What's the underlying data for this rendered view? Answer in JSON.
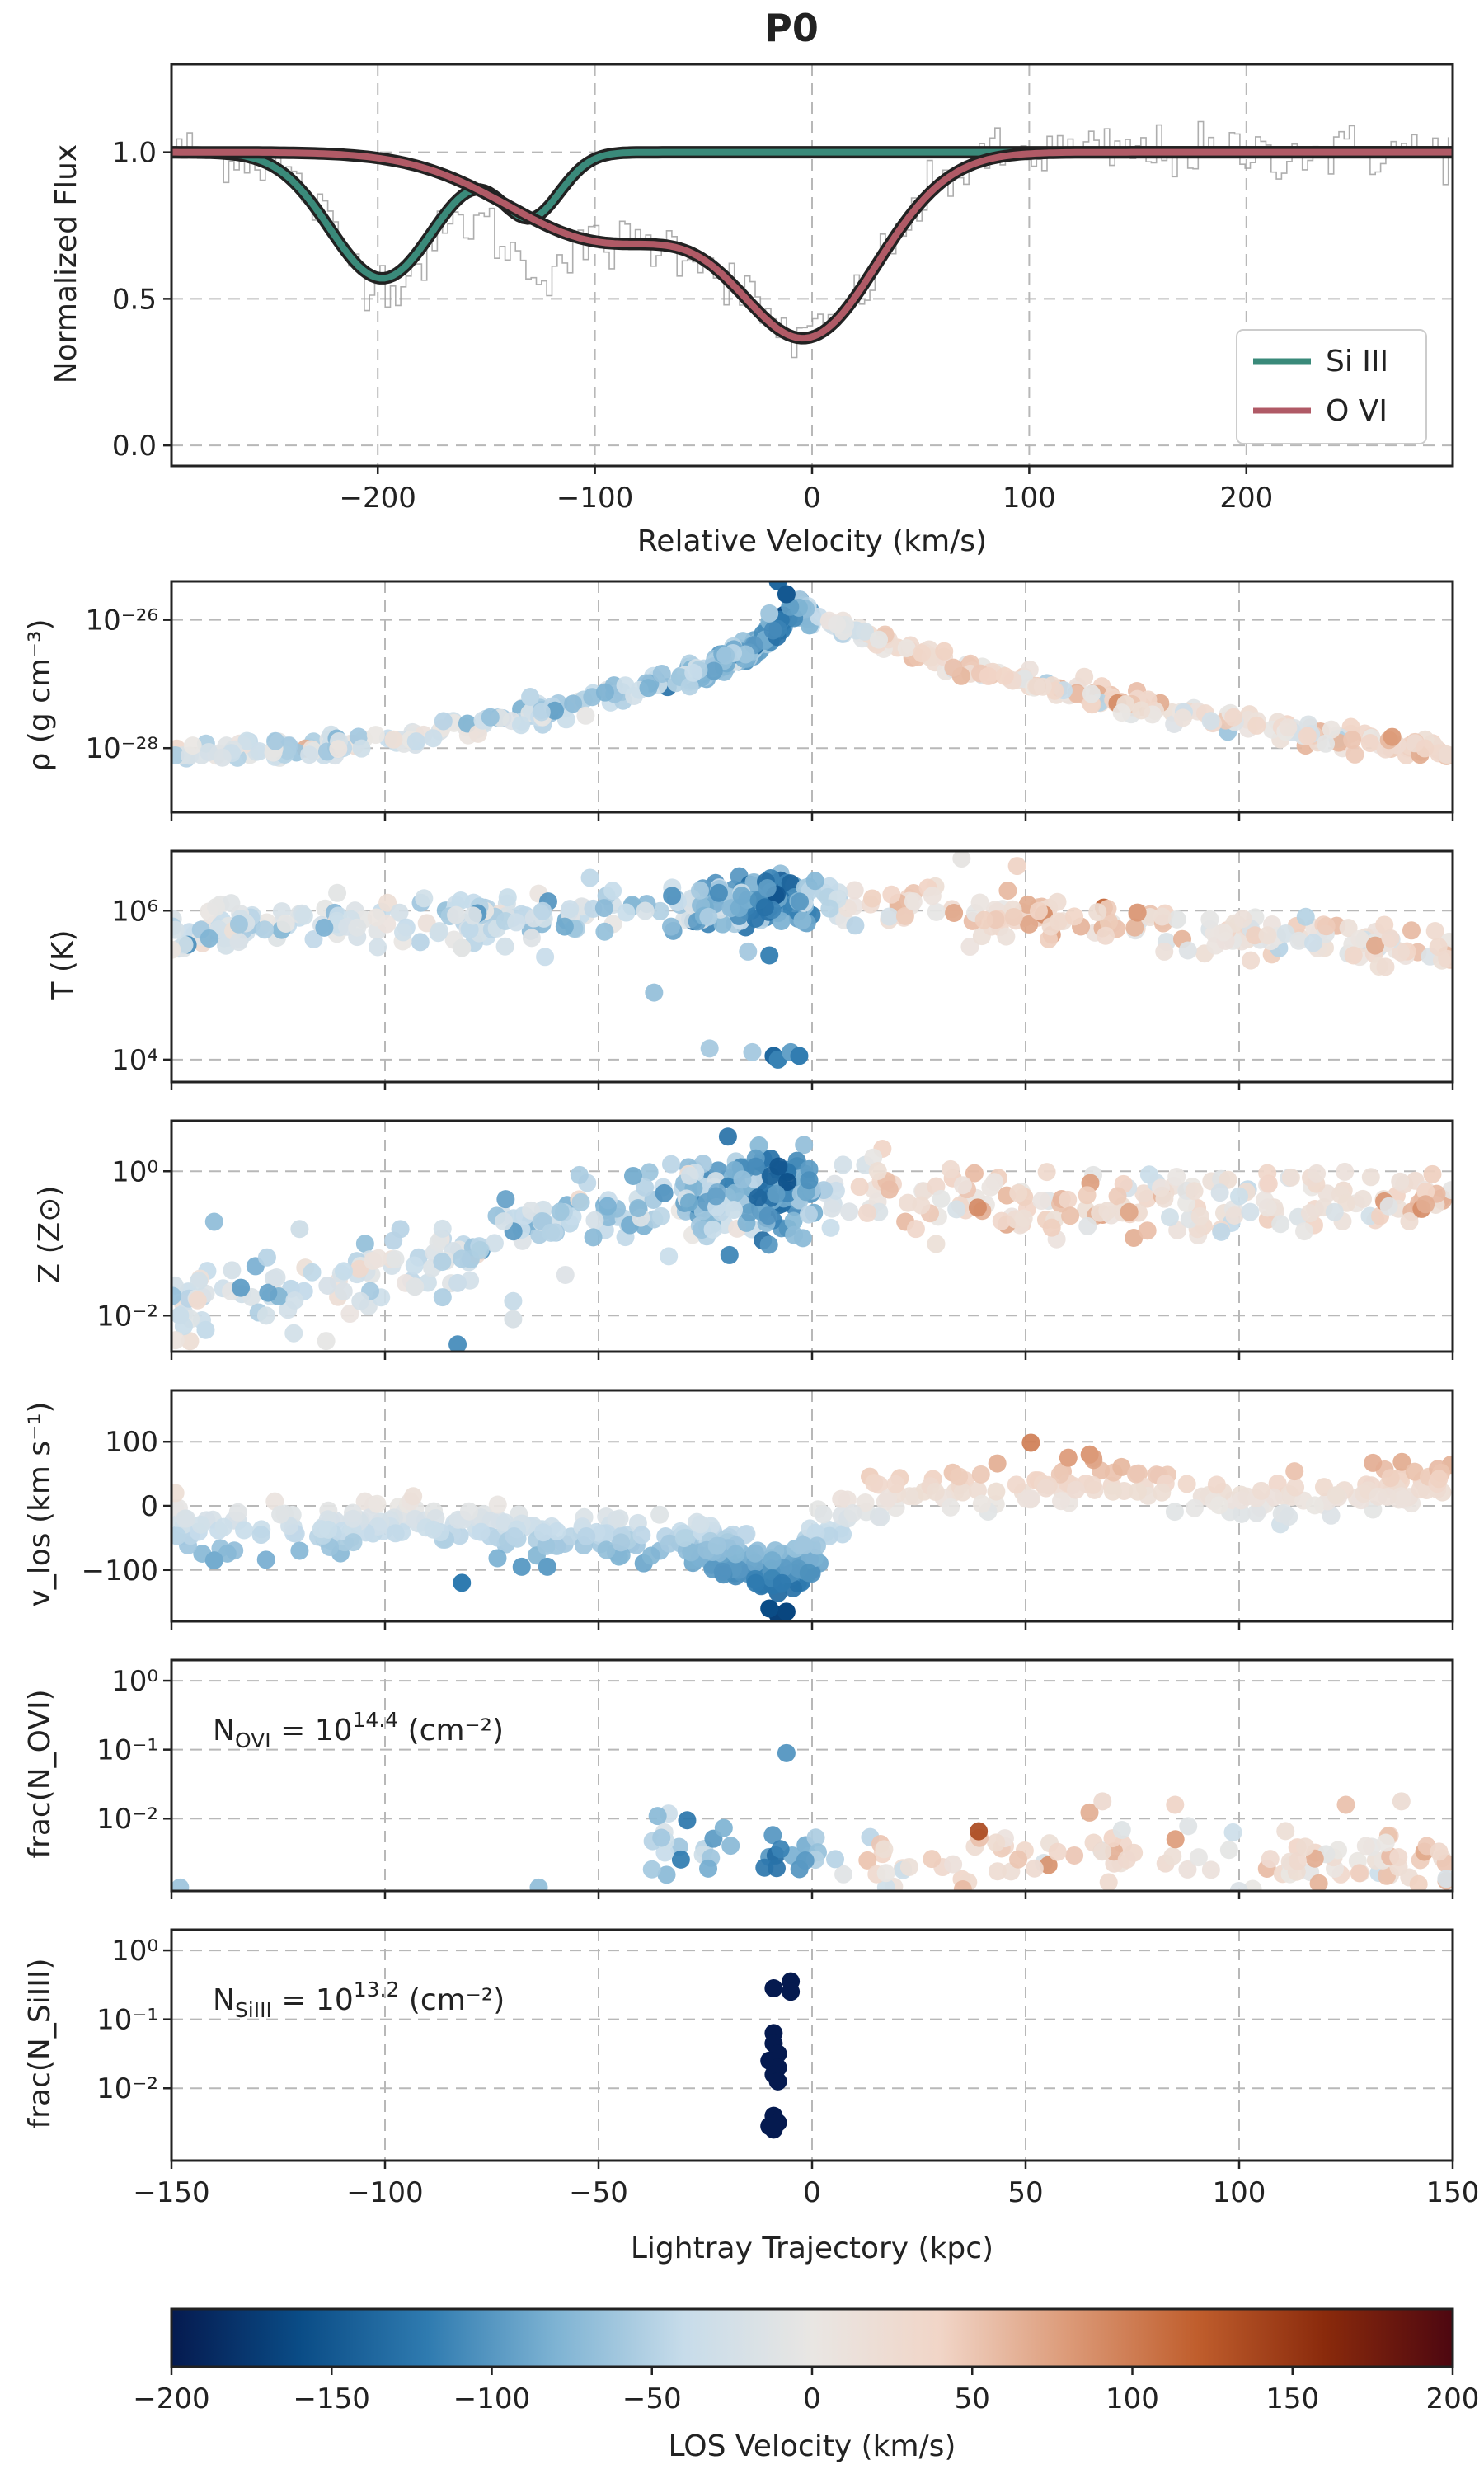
{
  "figure": {
    "title": "P0"
  },
  "chart_data": [
    {
      "id": "spectrum",
      "type": "line",
      "xlabel": "Relative Velocity (km/s)",
      "ylabel": "Normalized Flux",
      "xlim": [
        -295,
        295
      ],
      "ylim": [
        -0.07,
        1.3
      ],
      "xticks": [
        -200,
        -100,
        0,
        100,
        200
      ],
      "xtick_labels": [
        "−200",
        "−100",
        "0",
        "100",
        "200"
      ],
      "yticks": [
        0.0,
        0.5,
        1.0
      ],
      "ytick_labels": [
        "0.0",
        "0.5",
        "1.0"
      ],
      "grid": true,
      "legend_position": "lower-right",
      "series": [
        {
          "name": "Si III",
          "color": "#3a8a7a",
          "components": [
            {
              "center": -198,
              "depth": 0.43,
              "width": 24
            },
            {
              "center": -130,
              "depth": 0.22,
              "width": 14
            }
          ]
        },
        {
          "name": "O VI",
          "color": "#b05a66",
          "components": [
            {
              "center": -3,
              "depth": 0.62,
              "width": 33
            },
            {
              "center": -95,
              "depth": 0.3,
              "width": 45
            }
          ]
        }
      ],
      "observed": {
        "name": "data",
        "color": "#8a8a8a",
        "noise_sigma": 0.08
      }
    },
    {
      "id": "density",
      "type": "scatter",
      "ylabel": "ρ (g cm⁻³)",
      "yscale": "log",
      "ylim_log10": [
        -29.0,
        -25.4
      ],
      "yticks_log10": [
        -28,
        -26
      ],
      "ytick_labels": [
        "10⁻²⁸",
        "10⁻²⁶"
      ],
      "grid": true,
      "x_range": [
        -150,
        150
      ],
      "profile": [
        [
          -150,
          -28.1
        ],
        [
          -120,
          -28.0
        ],
        [
          -90,
          -27.8
        ],
        [
          -60,
          -27.4
        ],
        [
          -30,
          -26.9
        ],
        [
          -15,
          -26.5
        ],
        [
          -8,
          -26.1
        ],
        [
          -3,
          -25.8
        ],
        [
          0,
          -26.0
        ],
        [
          15,
          -26.3
        ],
        [
          40,
          -26.8
        ],
        [
          60,
          -27.1
        ],
        [
          90,
          -27.5
        ],
        [
          120,
          -27.8
        ],
        [
          150,
          -28.1
        ]
      ],
      "scatter_spread": 0.08,
      "outliers": [
        [
          -8,
          -25.4
        ],
        [
          -6,
          -25.6
        ],
        [
          -10,
          -25.9
        ],
        [
          -66,
          -27.2
        ]
      ]
    },
    {
      "id": "temperature",
      "type": "scatter",
      "ylabel": "T (K)",
      "yscale": "log",
      "ylim_log10": [
        3.7,
        6.8
      ],
      "yticks_log10": [
        4,
        6
      ],
      "ytick_labels": [
        "10⁴",
        "10⁶"
      ],
      "grid": true,
      "x_range": [
        -150,
        150
      ],
      "profile": [
        [
          -150,
          5.7
        ],
        [
          -120,
          5.85
        ],
        [
          -80,
          5.9
        ],
        [
          -40,
          6.0
        ],
        [
          -15,
          6.1
        ],
        [
          0,
          6.15
        ],
        [
          20,
          6.05
        ],
        [
          60,
          5.9
        ],
        [
          100,
          5.7
        ],
        [
          150,
          5.5
        ]
      ],
      "scatter_spread": 0.15,
      "outliers": [
        [
          -82,
          5.5
        ],
        [
          -37,
          4.9
        ],
        [
          -24,
          4.15
        ],
        [
          -14,
          4.1
        ],
        [
          -9,
          4.05
        ],
        [
          -8,
          4.0
        ],
        [
          -5,
          4.1
        ],
        [
          -3,
          4.05
        ],
        [
          -10,
          5.4
        ],
        [
          -15,
          5.45
        ],
        [
          35,
          6.7
        ],
        [
          48,
          6.6
        ]
      ]
    },
    {
      "id": "metallicity",
      "type": "scatter",
      "ylabel": "Z (Z⊙)",
      "yscale": "log",
      "ylim_log10": [
        -2.5,
        0.7
      ],
      "yticks_log10": [
        -2,
        0
      ],
      "ytick_labels": [
        "10⁻²",
        "10⁰"
      ],
      "grid": true,
      "x_range": [
        -150,
        150
      ],
      "profile": [
        [
          -150,
          -1.9
        ],
        [
          -130,
          -1.6
        ],
        [
          -110,
          -1.6
        ],
        [
          -90,
          -1.2
        ],
        [
          -70,
          -0.8
        ],
        [
          -50,
          -0.6
        ],
        [
          -25,
          -0.35
        ],
        [
          -10,
          -0.25
        ],
        [
          0,
          -0.3
        ],
        [
          20,
          -0.3
        ],
        [
          60,
          -0.5
        ],
        [
          100,
          -0.5
        ],
        [
          120,
          -0.35
        ],
        [
          150,
          -0.4
        ]
      ],
      "scatter_spread": 0.25,
      "outliers": [
        [
          -148,
          -2.0
        ],
        [
          -142,
          -2.2
        ],
        [
          -83,
          -2.4
        ],
        [
          -70,
          -2.05
        ],
        [
          -70,
          -1.8
        ],
        [
          -83,
          -1.55
        ],
        [
          -140,
          -0.7
        ],
        [
          -120,
          -0.8
        ],
        [
          -93,
          -1.6
        ]
      ]
    },
    {
      "id": "vlos",
      "type": "scatter",
      "ylabel": "v_los (km s⁻¹)",
      "yscale": "linear",
      "ylim": [
        -180,
        180
      ],
      "yticks": [
        -100,
        0,
        100
      ],
      "ytick_labels": [
        "−100",
        "0",
        "100"
      ],
      "grid": true,
      "x_range": [
        -150,
        150
      ],
      "profile": [
        [
          -150,
          -30
        ],
        [
          -130,
          -35
        ],
        [
          -110,
          -25
        ],
        [
          -90,
          -20
        ],
        [
          -75,
          -40
        ],
        [
          -55,
          -45
        ],
        [
          -35,
          -55
        ],
        [
          -20,
          -70
        ],
        [
          -12,
          -95
        ],
        [
          -8,
          -120
        ],
        [
          -3,
          -90
        ],
        [
          5,
          -30
        ],
        [
          20,
          25
        ],
        [
          50,
          30
        ],
        [
          70,
          35
        ],
        [
          90,
          10
        ],
        [
          110,
          5
        ],
        [
          130,
          25
        ],
        [
          150,
          40
        ]
      ],
      "scatter_spread": 18,
      "outliers": [
        [
          -82,
          -120
        ],
        [
          -68,
          -95
        ],
        [
          -62,
          -95
        ],
        [
          -8,
          -170
        ],
        [
          -6,
          -165
        ],
        [
          -10,
          -160
        ],
        [
          -140,
          -85
        ],
        [
          -120,
          -70
        ],
        [
          65,
          80
        ],
        [
          60,
          75
        ]
      ]
    },
    {
      "id": "frac_ovi",
      "type": "scatter",
      "ylabel": "frac(N_OVI)",
      "yscale": "log",
      "ylim_log10": [
        -3.05,
        0.3
      ],
      "yticks_log10": [
        -2,
        -1,
        0
      ],
      "ytick_labels": [
        "10⁻²",
        "10⁻¹",
        "10⁰"
      ],
      "annotation": {
        "prefix": "N",
        "sub": "OVI",
        "mid": " = 10",
        "sup": "14.4",
        "suffix": " (cm⁻²)"
      },
      "grid": true,
      "x_range": [
        -40,
        150
      ],
      "profile": [
        [
          -40,
          -2.6
        ],
        [
          -20,
          -2.4
        ],
        [
          -10,
          -2.5
        ],
        [
          0,
          -2.5
        ],
        [
          20,
          -2.7
        ],
        [
          60,
          -2.5
        ],
        [
          100,
          -2.7
        ],
        [
          150,
          -2.6
        ]
      ],
      "scatter_spread": 0.22,
      "outliers": [
        [
          -6,
          -1.05
        ],
        [
          -64,
          -3.0
        ],
        [
          -148,
          -3.0
        ],
        [
          68,
          -1.75
        ],
        [
          85,
          -1.8
        ],
        [
          125,
          -1.8
        ],
        [
          138,
          -1.75
        ]
      ]
    },
    {
      "id": "frac_siiii",
      "type": "scatter",
      "ylabel": "frac(N_SiIII)",
      "yscale": "log",
      "ylim_log10": [
        -3.05,
        0.3
      ],
      "yticks_log10": [
        -2,
        -1,
        0
      ],
      "ytick_labels": [
        "10⁻²",
        "10⁻¹",
        "10⁰"
      ],
      "annotation": {
        "prefix": "N",
        "sub": "SiIII",
        "mid": " = 10",
        "sup": "13.2",
        "suffix": " (cm⁻²)"
      },
      "grid": true,
      "points": [
        [
          -9,
          -0.55
        ],
        [
          -5,
          -0.45
        ],
        [
          -5,
          -0.6
        ],
        [
          -9,
          -1.2
        ],
        [
          -9,
          -1.35
        ],
        [
          -8,
          -1.5
        ],
        [
          -10,
          -1.6
        ],
        [
          -8,
          -1.7
        ],
        [
          -9,
          -1.8
        ],
        [
          -8,
          -1.9
        ],
        [
          -9,
          -2.4
        ],
        [
          -10,
          -2.55
        ],
        [
          -9,
          -2.6
        ],
        [
          -8,
          -2.5
        ]
      ],
      "point_velocity": -200
    }
  ],
  "shared_x": {
    "label": "Lightray Trajectory (kpc)",
    "xlim": [
      -150,
      150
    ],
    "ticks": [
      -150,
      -100,
      -50,
      0,
      50,
      100,
      150
    ],
    "tick_labels": [
      "−150",
      "−100",
      "−50",
      "0",
      "50",
      "100",
      "150"
    ]
  },
  "colorbar": {
    "label": "LOS Velocity (km/s)",
    "range": [
      -200,
      200
    ],
    "ticks": [
      -200,
      -150,
      -100,
      -50,
      0,
      50,
      100,
      150,
      200
    ],
    "tick_labels": [
      "−200",
      "−150",
      "−100",
      "−50",
      "0",
      "50",
      "100",
      "150",
      "200"
    ],
    "colormap": [
      "#051a4f",
      "#0a4c86",
      "#2f7bb0",
      "#7eb3d3",
      "#c7dcea",
      "#e9e6e3",
      "#f1d5c7",
      "#dc9a78",
      "#c05e2d",
      "#8a2a0c",
      "#4d0710"
    ]
  }
}
